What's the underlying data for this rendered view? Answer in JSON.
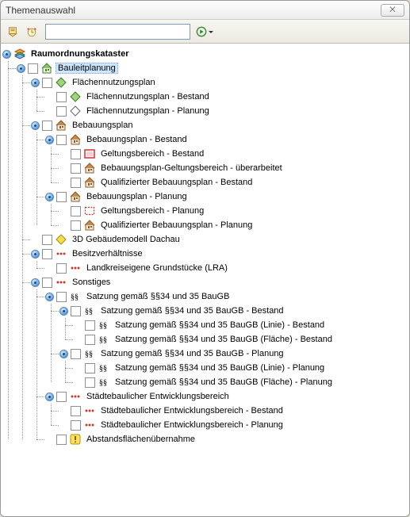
{
  "window": {
    "title": "Themenauswahl",
    "close_glyph": "✕"
  },
  "toolbar": {
    "search_value": ""
  },
  "colors": {
    "selection_bg": "#cde6ff",
    "selection_border": "#7aa7d7"
  },
  "tree": [
    {
      "label": "Raumordnungskataster",
      "icon": "stack",
      "checkbox": false,
      "bold": true,
      "children": [
        {
          "label": "Bauleitplanung",
          "icon": "house-green",
          "checkbox": true,
          "selected": true,
          "children": [
            {
              "label": "Flächennutzungsplan",
              "icon": "diamond-green",
              "checkbox": true,
              "children": [
                {
                  "label": "Flächennutzungsplan - Bestand",
                  "icon": "diamond-green",
                  "checkbox": true
                },
                {
                  "label": "Flächennutzungsplan - Planung",
                  "icon": "diamond-outline",
                  "checkbox": true
                }
              ]
            },
            {
              "label": "Bebauungsplan",
              "icon": "house-brown",
              "checkbox": true,
              "children": [
                {
                  "label": "Bebauungsplan - Bestand",
                  "icon": "house-brown",
                  "checkbox": true,
                  "children": [
                    {
                      "label": "Geltungsbereich - Bestand",
                      "icon": "area-red",
                      "checkbox": true
                    },
                    {
                      "label": "Bebauungsplan-Geltungsbereich - überarbeitet",
                      "icon": "house-brown",
                      "checkbox": true
                    },
                    {
                      "label": "Qualifizierter Bebauungsplan - Bestand",
                      "icon": "house-brown",
                      "checkbox": true
                    }
                  ]
                },
                {
                  "label": "Bebauungsplan - Planung",
                  "icon": "house-brown",
                  "checkbox": true,
                  "children": [
                    {
                      "label": "Geltungsbereich - Planung",
                      "icon": "area-dashed",
                      "checkbox": true
                    },
                    {
                      "label": "Qualifizierter Bebauungsplan - Planung",
                      "icon": "house-brown",
                      "checkbox": true
                    }
                  ]
                }
              ]
            },
            {
              "label": "3D Gebäudemodell Dachau",
              "icon": "diamond-yellow",
              "checkbox": true
            },
            {
              "label": "Besitzverhältnisse",
              "icon": "dots",
              "checkbox": true,
              "children": [
                {
                  "label": "Landkreiseigene Grundstücke (LRA)",
                  "icon": "dots",
                  "checkbox": true
                }
              ]
            },
            {
              "label": "Sonstiges",
              "icon": "dots",
              "checkbox": true,
              "children": [
                {
                  "label": "Satzung gemäß §§34 und 35 BauGB",
                  "icon": "section",
                  "checkbox": true,
                  "children": [
                    {
                      "label": "Satzung gemäß §§34 und 35 BauGB - Bestand",
                      "icon": "section",
                      "checkbox": true,
                      "children": [
                        {
                          "label": "Satzung gemäß §§34 und 35 BauGB (Linie) - Bestand",
                          "icon": "section",
                          "checkbox": true
                        },
                        {
                          "label": "Satzung gemäß §§34 und 35 BauGB (Fläche) - Bestand",
                          "icon": "section",
                          "checkbox": true
                        }
                      ]
                    },
                    {
                      "label": "Satzung gemäß §§34 und 35 BauGB - Planung",
                      "icon": "section",
                      "checkbox": true,
                      "children": [
                        {
                          "label": "Satzung gemäß §§34 und 35 BauGB (Linie) - Planung",
                          "icon": "section",
                          "checkbox": true
                        },
                        {
                          "label": "Satzung gemäß §§34 und 35 BauGB (Fläche) - Planung",
                          "icon": "section",
                          "checkbox": true
                        }
                      ]
                    }
                  ]
                },
                {
                  "label": "Städtebaulicher Entwicklungsbereich",
                  "icon": "dots",
                  "checkbox": true,
                  "children": [
                    {
                      "label": "Städtebaulicher Entwicklungsbereich - Bestand",
                      "icon": "dots",
                      "checkbox": true
                    },
                    {
                      "label": "Städtebaulicher Entwicklungsbereich - Planung",
                      "icon": "dots",
                      "checkbox": true
                    }
                  ]
                },
                {
                  "label": "Abstandsflächenübernahme",
                  "icon": "warn",
                  "checkbox": true
                }
              ]
            }
          ]
        }
      ]
    }
  ]
}
